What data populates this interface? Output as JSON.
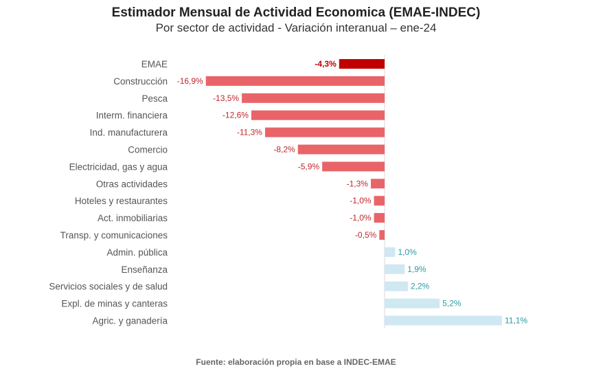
{
  "chart_data": {
    "type": "bar",
    "orientation": "horizontal",
    "title": "Estimador Mensual de Actividad Economica (EMAE-INDEC)",
    "subtitle": "Por sector de actividad - Variación interanual – ene-24",
    "source": "Fuente: elaboración propia en base a INDEC-EMAE",
    "categories": [
      "EMAE",
      "Construcción",
      "Pesca",
      "Interm. financiera",
      "Ind. manufacturera",
      "Comercio",
      "Electricidad, gas y agua",
      "Otras actividades",
      "Hoteles y restaurantes",
      "Act. inmobiliarias",
      "Transp. y comunicaciones",
      "Admin. pública",
      "Enseñanza",
      "Servicios sociales y de salud",
      "Expl. de minas y canteras",
      "Agric. y ganadería"
    ],
    "values": [
      -4.3,
      -16.9,
      -13.5,
      -12.6,
      -11.3,
      -8.2,
      -5.9,
      -1.3,
      -1.0,
      -1.0,
      -0.5,
      1.0,
      1.9,
      2.2,
      5.2,
      11.1
    ],
    "value_labels": [
      "-4,3%",
      "-16,9%",
      "-13,5%",
      "-12,6%",
      "-11,3%",
      "-8,2%",
      "-5,9%",
      "-1,3%",
      "-1,0%",
      "-1,0%",
      "-0,5%",
      "1,0%",
      "1,9%",
      "2,2%",
      "5,2%",
      "11,1%"
    ],
    "colors": {
      "highlight": "#c00000",
      "negative": "#e96468",
      "positive": "#cfe8f1",
      "highlight_label": "#c00000",
      "negative_label": "#c0262c",
      "positive_label": "#2a9aa0"
    },
    "highlight_index": 0,
    "grid": false,
    "legend": "none"
  }
}
